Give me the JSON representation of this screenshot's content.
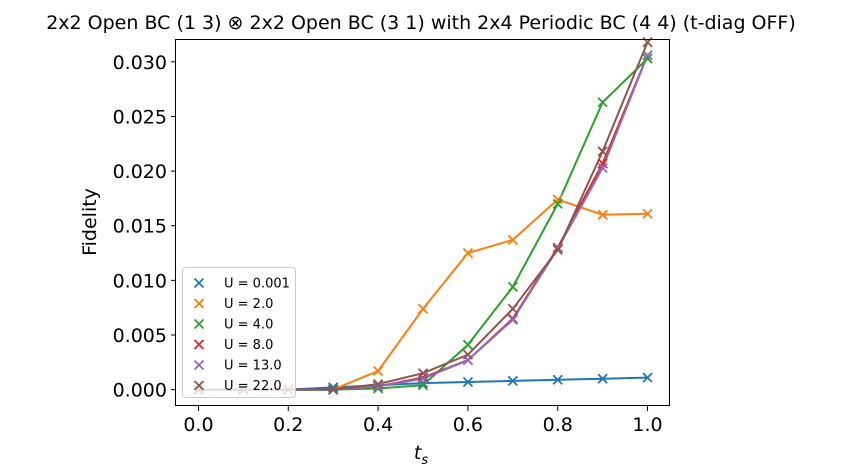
{
  "chart_data": {
    "type": "line",
    "title": "2x2 Open BC (1 3) ⊗ 2x2 Open BC (3 1) with 2x4 Periodic BC (4 4) (t-diag OFF)",
    "xlabel": "t_s",
    "ylabel": "Fidelity",
    "xlim": [
      -0.05,
      1.05
    ],
    "ylim": [
      -0.0015,
      0.032
    ],
    "xticks": [
      "0.0",
      "0.2",
      "0.4",
      "0.6",
      "0.8",
      "1.0"
    ],
    "yticks": [
      "0.000",
      "0.005",
      "0.010",
      "0.015",
      "0.020",
      "0.025",
      "0.030"
    ],
    "grid": false,
    "legend_position": "lower-left",
    "x": [
      0.0,
      0.1,
      0.2,
      0.3,
      0.4,
      0.5,
      0.6,
      0.7,
      0.8,
      0.9,
      1.0
    ],
    "series": [
      {
        "name": "U = 0.001",
        "color": "#1f77b4",
        "values": [
          0.0,
          0.0,
          0.0,
          0.0002,
          0.0004,
          0.0006,
          0.0007,
          0.0008,
          0.0009,
          0.001,
          0.0011
        ]
      },
      {
        "name": "U = 2.0",
        "color": "#ff7f0e",
        "values": [
          0.0,
          0.0,
          0.0,
          0.0,
          0.0017,
          0.0074,
          0.0125,
          0.0137,
          0.0174,
          0.016,
          0.0161
        ]
      },
      {
        "name": "U = 4.0",
        "color": "#2ca02c",
        "values": [
          0.0,
          0.0,
          0.0,
          0.0,
          0.0001,
          0.0004,
          0.0041,
          0.0094,
          0.017,
          0.0263,
          0.0303
        ]
      },
      {
        "name": "U = 8.0",
        "color": "#d62728",
        "values": [
          0.0,
          0.0,
          0.0,
          0.0,
          0.0003,
          0.0011,
          0.0027,
          0.0065,
          0.013,
          0.0207,
          0.0306
        ]
      },
      {
        "name": "U = 13.0",
        "color": "#9467bd",
        "values": [
          0.0,
          0.0,
          0.0,
          0.0,
          0.0003,
          0.001,
          0.0027,
          0.0064,
          0.0129,
          0.0203,
          0.0306
        ]
      },
      {
        "name": "U = 22.0",
        "color": "#8c564b",
        "values": [
          0.0,
          0.0,
          0.0,
          0.0,
          0.0005,
          0.0015,
          0.0032,
          0.0074,
          0.0128,
          0.0218,
          0.0318
        ]
      }
    ]
  }
}
